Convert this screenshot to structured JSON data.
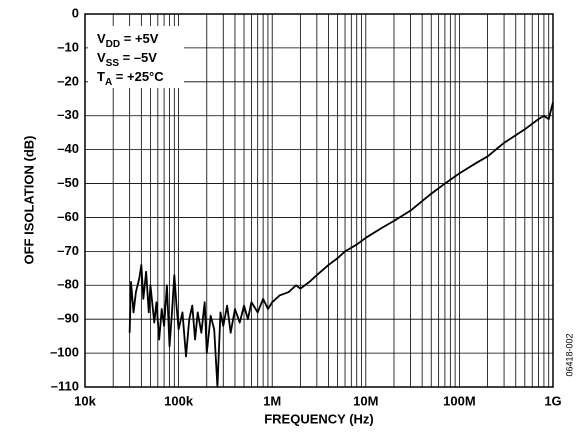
{
  "chart_data": {
    "type": "line",
    "xlabel": "FREQUENCY (Hz)",
    "ylabel": "OFF ISOLATION (dB)",
    "side_note": "06418-002",
    "annotations": [
      {
        "main": "V",
        "sub": "DD",
        "rest": " = +5V"
      },
      {
        "main": "V",
        "sub": "SS",
        "rest": " = –5V"
      },
      {
        "main": "T",
        "sub": "A",
        "rest": " = +25°C"
      }
    ],
    "xscale": "log",
    "grid": true,
    "color": "#000000",
    "xlim": [
      10000,
      1000000000
    ],
    "xticks": [
      {
        "value": 10000,
        "label": "10k"
      },
      {
        "value": 100000,
        "label": "100k"
      },
      {
        "value": 1000000,
        "label": "1M"
      },
      {
        "value": 10000000,
        "label": "10M"
      },
      {
        "value": 100000000,
        "label": "100M"
      },
      {
        "value": 1000000000,
        "label": "1G"
      }
    ],
    "xminorticks": [
      20000,
      30000,
      40000,
      50000,
      60000,
      70000,
      80000,
      90000,
      200000,
      300000,
      400000,
      500000,
      600000,
      700000,
      800000,
      900000,
      2000000,
      3000000,
      4000000,
      5000000,
      6000000,
      7000000,
      8000000,
      9000000,
      20000000,
      30000000,
      40000000,
      50000000,
      60000000,
      70000000,
      80000000,
      90000000,
      200000000,
      300000000,
      400000000,
      500000000,
      600000000,
      700000000,
      800000000,
      900000000
    ],
    "ylim": [
      -110,
      0
    ],
    "yticks": [
      0,
      {
        "value": -10,
        "label": "–10"
      },
      {
        "value": -20,
        "label": "–20"
      },
      {
        "value": -30,
        "label": "–30"
      },
      {
        "value": -40,
        "label": "–40"
      },
      {
        "value": -50,
        "label": "–50"
      },
      {
        "value": -60,
        "label": "–60"
      },
      {
        "value": -70,
        "label": "–70"
      },
      {
        "value": -80,
        "label": "–80"
      },
      {
        "value": -90,
        "label": "–90"
      },
      {
        "value": -100,
        "label": "–100"
      },
      {
        "value": -110,
        "label": "–110"
      }
    ],
    "x": [
      30000,
      31000,
      33000,
      35000,
      38000,
      40000,
      42000,
      45000,
      48000,
      50000,
      55000,
      58000,
      62000,
      66000,
      70000,
      75000,
      80000,
      85000,
      90000,
      95000,
      100000,
      110000,
      120000,
      130000,
      140000,
      150000,
      160000,
      175000,
      190000,
      200000,
      220000,
      240000,
      260000,
      280000,
      300000,
      330000,
      360000,
      400000,
      450000,
      500000,
      550000,
      600000,
      700000,
      800000,
      900000,
      1000000,
      1200000,
      1500000,
      1800000,
      2000000,
      2500000,
      3000000,
      4000000,
      5000000,
      6000000,
      8000000,
      10000000,
      15000000,
      20000000,
      30000000,
      50000000,
      70000000,
      100000000,
      150000000,
      200000000,
      300000000,
      500000000,
      700000000,
      800000000,
      900000000,
      1000000000
    ],
    "values": [
      -94,
      -79,
      -88,
      -82,
      -78,
      -74,
      -84,
      -76,
      -88,
      -80,
      -91,
      -85,
      -96,
      -87,
      -92,
      -80,
      -98,
      -88,
      -77,
      -86,
      -93,
      -88,
      -101,
      -90,
      -86,
      -96,
      -88,
      -94,
      -85,
      -100,
      -89,
      -93,
      -110,
      -88,
      -92,
      -86,
      -94,
      -87,
      -91,
      -86,
      -90,
      -85,
      -88,
      -84,
      -87,
      -85,
      -83,
      -82,
      -80,
      -81,
      -79,
      -77,
      -74,
      -72,
      -70,
      -68,
      -66,
      -63,
      -61,
      -58,
      -53,
      -50,
      -47,
      -44,
      -42,
      -38,
      -34,
      -31,
      -30,
      -31,
      -26
    ]
  }
}
